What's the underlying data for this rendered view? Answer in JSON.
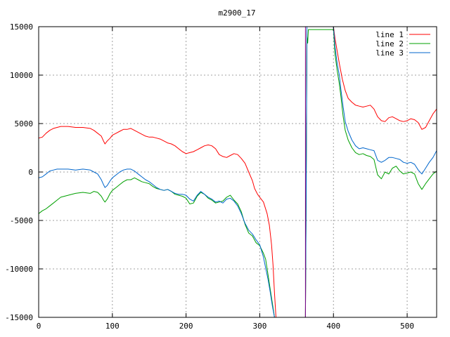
{
  "chart_data": {
    "type": "line",
    "title": "m2900_17",
    "xlabel": "",
    "ylabel": "",
    "xlim": [
      0,
      540
    ],
    "ylim": [
      -15000,
      15000
    ],
    "xticks": [
      0,
      100,
      200,
      300,
      400,
      500
    ],
    "yticks": [
      -15000,
      -10000,
      -5000,
      0,
      5000,
      10000,
      15000
    ],
    "grid": true,
    "legend_position": "top-right",
    "series": [
      {
        "name": "line 1",
        "color": "#ff0000",
        "points": [
          [
            0,
            3500
          ],
          [
            5,
            3600
          ],
          [
            10,
            4000
          ],
          [
            15,
            4300
          ],
          [
            20,
            4500
          ],
          [
            25,
            4600
          ],
          [
            30,
            4700
          ],
          [
            40,
            4700
          ],
          [
            50,
            4600
          ],
          [
            60,
            4600
          ],
          [
            70,
            4500
          ],
          [
            75,
            4300
          ],
          [
            80,
            4000
          ],
          [
            85,
            3700
          ],
          [
            88,
            3200
          ],
          [
            90,
            2900
          ],
          [
            93,
            3200
          ],
          [
            97,
            3500
          ],
          [
            100,
            3800
          ],
          [
            105,
            4000
          ],
          [
            110,
            4200
          ],
          [
            115,
            4400
          ],
          [
            120,
            4400
          ],
          [
            125,
            4500
          ],
          [
            130,
            4300
          ],
          [
            135,
            4100
          ],
          [
            140,
            3900
          ],
          [
            145,
            3700
          ],
          [
            150,
            3600
          ],
          [
            155,
            3600
          ],
          [
            160,
            3500
          ],
          [
            165,
            3400
          ],
          [
            170,
            3200
          ],
          [
            175,
            3000
          ],
          [
            180,
            2900
          ],
          [
            185,
            2700
          ],
          [
            190,
            2400
          ],
          [
            195,
            2100
          ],
          [
            200,
            1900
          ],
          [
            205,
            2000
          ],
          [
            210,
            2100
          ],
          [
            215,
            2300
          ],
          [
            220,
            2500
          ],
          [
            225,
            2700
          ],
          [
            230,
            2800
          ],
          [
            235,
            2700
          ],
          [
            240,
            2400
          ],
          [
            245,
            1800
          ],
          [
            250,
            1600
          ],
          [
            255,
            1500
          ],
          [
            260,
            1700
          ],
          [
            265,
            1900
          ],
          [
            270,
            1800
          ],
          [
            275,
            1400
          ],
          [
            280,
            900
          ],
          [
            285,
            0
          ],
          [
            290,
            -900
          ],
          [
            293,
            -1700
          ],
          [
            297,
            -2300
          ],
          [
            300,
            -2600
          ],
          [
            305,
            -3100
          ],
          [
            310,
            -4300
          ],
          [
            313,
            -5500
          ],
          [
            316,
            -7500
          ],
          [
            318,
            -9600
          ],
          [
            320,
            -12500
          ],
          [
            322,
            -15000
          ],
          [
            null,
            null
          ],
          [
            362,
            -15000
          ],
          [
            363,
            0
          ],
          [
            364,
            15000
          ],
          [
            null,
            null
          ],
          [
            400,
            15000
          ],
          [
            402,
            13800
          ],
          [
            405,
            12500
          ],
          [
            408,
            11200
          ],
          [
            412,
            9600
          ],
          [
            416,
            8400
          ],
          [
            420,
            7600
          ],
          [
            425,
            7200
          ],
          [
            430,
            6900
          ],
          [
            435,
            6800
          ],
          [
            440,
            6700
          ],
          [
            445,
            6800
          ],
          [
            450,
            6900
          ],
          [
            455,
            6500
          ],
          [
            460,
            5700
          ],
          [
            465,
            5300
          ],
          [
            470,
            5200
          ],
          [
            475,
            5600
          ],
          [
            480,
            5700
          ],
          [
            485,
            5500
          ],
          [
            490,
            5300
          ],
          [
            495,
            5200
          ],
          [
            500,
            5300
          ],
          [
            505,
            5500
          ],
          [
            510,
            5400
          ],
          [
            515,
            5100
          ],
          [
            520,
            4400
          ],
          [
            525,
            4600
          ],
          [
            530,
            5300
          ],
          [
            535,
            6000
          ],
          [
            540,
            6500
          ]
        ]
      },
      {
        "name": "line 2",
        "color": "#00a000",
        "points": [
          [
            0,
            -4300
          ],
          [
            5,
            -4000
          ],
          [
            10,
            -3800
          ],
          [
            15,
            -3500
          ],
          [
            20,
            -3200
          ],
          [
            25,
            -2900
          ],
          [
            30,
            -2600
          ],
          [
            40,
            -2400
          ],
          [
            50,
            -2200
          ],
          [
            60,
            -2100
          ],
          [
            70,
            -2200
          ],
          [
            75,
            -2000
          ],
          [
            80,
            -2100
          ],
          [
            85,
            -2500
          ],
          [
            88,
            -2900
          ],
          [
            90,
            -3100
          ],
          [
            93,
            -2800
          ],
          [
            97,
            -2200
          ],
          [
            100,
            -1900
          ],
          [
            105,
            -1600
          ],
          [
            110,
            -1300
          ],
          [
            115,
            -1000
          ],
          [
            120,
            -800
          ],
          [
            125,
            -800
          ],
          [
            130,
            -600
          ],
          [
            135,
            -800
          ],
          [
            140,
            -1000
          ],
          [
            145,
            -1100
          ],
          [
            150,
            -1200
          ],
          [
            155,
            -1500
          ],
          [
            160,
            -1700
          ],
          [
            165,
            -1800
          ],
          [
            170,
            -1900
          ],
          [
            175,
            -1800
          ],
          [
            180,
            -2000
          ],
          [
            185,
            -2300
          ],
          [
            190,
            -2400
          ],
          [
            195,
            -2500
          ],
          [
            200,
            -2700
          ],
          [
            205,
            -3300
          ],
          [
            210,
            -3200
          ],
          [
            215,
            -2500
          ],
          [
            220,
            -2100
          ],
          [
            225,
            -2300
          ],
          [
            230,
            -2700
          ],
          [
            235,
            -2900
          ],
          [
            240,
            -3200
          ],
          [
            245,
            -3100
          ],
          [
            250,
            -3000
          ],
          [
            255,
            -2600
          ],
          [
            260,
            -2400
          ],
          [
            265,
            -2900
          ],
          [
            270,
            -3300
          ],
          [
            275,
            -4100
          ],
          [
            280,
            -5400
          ],
          [
            285,
            -6300
          ],
          [
            290,
            -6600
          ],
          [
            295,
            -7300
          ],
          [
            300,
            -7600
          ],
          [
            305,
            -8400
          ],
          [
            308,
            -9000
          ],
          [
            311,
            -10500
          ],
          [
            314,
            -12000
          ],
          [
            317,
            -13500
          ],
          [
            320,
            -15000
          ],
          [
            null,
            null
          ],
          [
            362,
            -15000
          ],
          [
            363,
            -1800
          ],
          [
            364,
            14000
          ],
          [
            365,
            13300
          ],
          [
            366,
            14700
          ],
          [
            370,
            14700
          ],
          [
            380,
            14700
          ],
          [
            390,
            14700
          ],
          [
            395,
            14700
          ],
          [
            400,
            14700
          ],
          [
            402,
            12200
          ],
          [
            405,
            10500
          ],
          [
            408,
            9100
          ],
          [
            410,
            7900
          ],
          [
            413,
            5800
          ],
          [
            416,
            4300
          ],
          [
            420,
            3300
          ],
          [
            425,
            2500
          ],
          [
            430,
            2000
          ],
          [
            435,
            1800
          ],
          [
            440,
            1900
          ],
          [
            445,
            1700
          ],
          [
            450,
            1600
          ],
          [
            455,
            1300
          ],
          [
            460,
            -300
          ],
          [
            465,
            -700
          ],
          [
            470,
            0
          ],
          [
            475,
            -200
          ],
          [
            480,
            400
          ],
          [
            485,
            600
          ],
          [
            490,
            100
          ],
          [
            495,
            -200
          ],
          [
            500,
            -100
          ],
          [
            505,
            0
          ],
          [
            510,
            -200
          ],
          [
            515,
            -1200
          ],
          [
            520,
            -1800
          ],
          [
            525,
            -1200
          ],
          [
            530,
            -700
          ],
          [
            535,
            -200
          ],
          [
            540,
            100
          ]
        ]
      },
      {
        "name": "line 3",
        "color": "#0066cc",
        "points": [
          [
            0,
            -600
          ],
          [
            5,
            -500
          ],
          [
            10,
            -200
          ],
          [
            15,
            100
          ],
          [
            20,
            200
          ],
          [
            25,
            300
          ],
          [
            30,
            300
          ],
          [
            40,
            300
          ],
          [
            50,
            200
          ],
          [
            60,
            300
          ],
          [
            70,
            200
          ],
          [
            75,
            0
          ],
          [
            80,
            -200
          ],
          [
            85,
            -800
          ],
          [
            88,
            -1300
          ],
          [
            90,
            -1600
          ],
          [
            93,
            -1400
          ],
          [
            97,
            -900
          ],
          [
            100,
            -600
          ],
          [
            105,
            -300
          ],
          [
            110,
            0
          ],
          [
            115,
            200
          ],
          [
            120,
            300
          ],
          [
            125,
            300
          ],
          [
            130,
            100
          ],
          [
            135,
            -200
          ],
          [
            140,
            -500
          ],
          [
            145,
            -800
          ],
          [
            150,
            -1000
          ],
          [
            155,
            -1300
          ],
          [
            160,
            -1600
          ],
          [
            165,
            -1800
          ],
          [
            170,
            -1900
          ],
          [
            175,
            -1800
          ],
          [
            180,
            -2000
          ],
          [
            185,
            -2200
          ],
          [
            190,
            -2300
          ],
          [
            195,
            -2300
          ],
          [
            200,
            -2400
          ],
          [
            205,
            -2800
          ],
          [
            210,
            -3000
          ],
          [
            215,
            -2400
          ],
          [
            220,
            -2000
          ],
          [
            225,
            -2300
          ],
          [
            230,
            -2600
          ],
          [
            235,
            -2800
          ],
          [
            240,
            -3100
          ],
          [
            245,
            -3000
          ],
          [
            250,
            -3200
          ],
          [
            255,
            -2800
          ],
          [
            260,
            -2700
          ],
          [
            265,
            -3000
          ],
          [
            270,
            -3500
          ],
          [
            275,
            -4300
          ],
          [
            280,
            -5300
          ],
          [
            285,
            -6000
          ],
          [
            290,
            -6400
          ],
          [
            295,
            -7000
          ],
          [
            300,
            -7500
          ],
          [
            305,
            -8800
          ],
          [
            308,
            -9900
          ],
          [
            311,
            -11000
          ],
          [
            314,
            -12300
          ],
          [
            317,
            -13800
          ],
          [
            320,
            -15000
          ],
          [
            null,
            null
          ],
          [
            362,
            -15000
          ],
          [
            363,
            -1000
          ],
          [
            364,
            15000
          ],
          [
            null,
            null
          ],
          [
            400,
            15000
          ],
          [
            402,
            13000
          ],
          [
            405,
            11200
          ],
          [
            408,
            10000
          ],
          [
            410,
            8600
          ],
          [
            413,
            6800
          ],
          [
            416,
            5200
          ],
          [
            420,
            4200
          ],
          [
            425,
            3300
          ],
          [
            430,
            2700
          ],
          [
            435,
            2400
          ],
          [
            440,
            2500
          ],
          [
            445,
            2400
          ],
          [
            450,
            2300
          ],
          [
            455,
            2200
          ],
          [
            460,
            1200
          ],
          [
            465,
            1000
          ],
          [
            470,
            1200
          ],
          [
            475,
            1500
          ],
          [
            480,
            1500
          ],
          [
            485,
            1400
          ],
          [
            490,
            1300
          ],
          [
            495,
            1000
          ],
          [
            500,
            900
          ],
          [
            505,
            1000
          ],
          [
            510,
            800
          ],
          [
            515,
            200
          ],
          [
            520,
            -200
          ],
          [
            525,
            400
          ],
          [
            530,
            1000
          ],
          [
            535,
            1500
          ],
          [
            540,
            2200
          ]
        ]
      },
      {
        "name": "",
        "color": "#800080",
        "points": [
          [
            362,
            -15000
          ],
          [
            362,
            15000
          ]
        ]
      }
    ]
  }
}
